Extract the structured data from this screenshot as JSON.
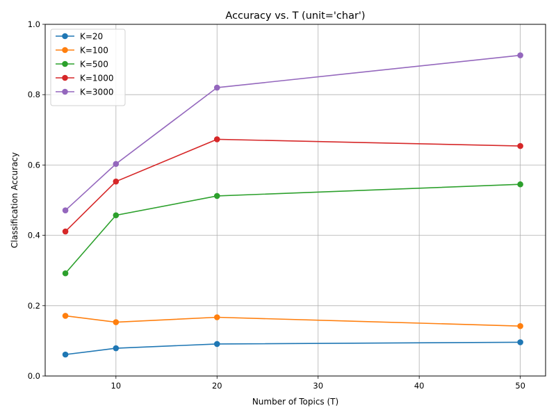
{
  "chart_data": {
    "type": "line",
    "title": "Accuracy vs. T (unit='char')",
    "xlabel": "Number of Topics (T)",
    "ylabel": "Classification Accuracy",
    "x": [
      5,
      10,
      20,
      50
    ],
    "xlim": [
      3,
      52.5
    ],
    "ylim": [
      0,
      1.0
    ],
    "xticks": [
      10,
      20,
      30,
      40,
      50
    ],
    "yticks": [
      0.0,
      0.2,
      0.4,
      0.6,
      0.8,
      1.0
    ],
    "xtick_labels": [
      "10",
      "20",
      "30",
      "40",
      "50"
    ],
    "ytick_labels": [
      "0.0",
      "0.2",
      "0.4",
      "0.6",
      "0.8",
      "1.0"
    ],
    "grid": true,
    "legend_position": "top-left",
    "series": [
      {
        "name": "K=20",
        "color": "#1f77b4",
        "values": [
          0.061,
          0.079,
          0.091,
          0.096
        ]
      },
      {
        "name": "K=100",
        "color": "#ff7f0e",
        "values": [
          0.171,
          0.153,
          0.167,
          0.142
        ]
      },
      {
        "name": "K=500",
        "color": "#2ca02c",
        "values": [
          0.292,
          0.457,
          0.512,
          0.545
        ]
      },
      {
        "name": "K=1000",
        "color": "#d62728",
        "values": [
          0.411,
          0.553,
          0.673,
          0.654
        ]
      },
      {
        "name": "K=3000",
        "color": "#9467bd",
        "values": [
          0.471,
          0.603,
          0.82,
          0.912
        ]
      }
    ]
  }
}
